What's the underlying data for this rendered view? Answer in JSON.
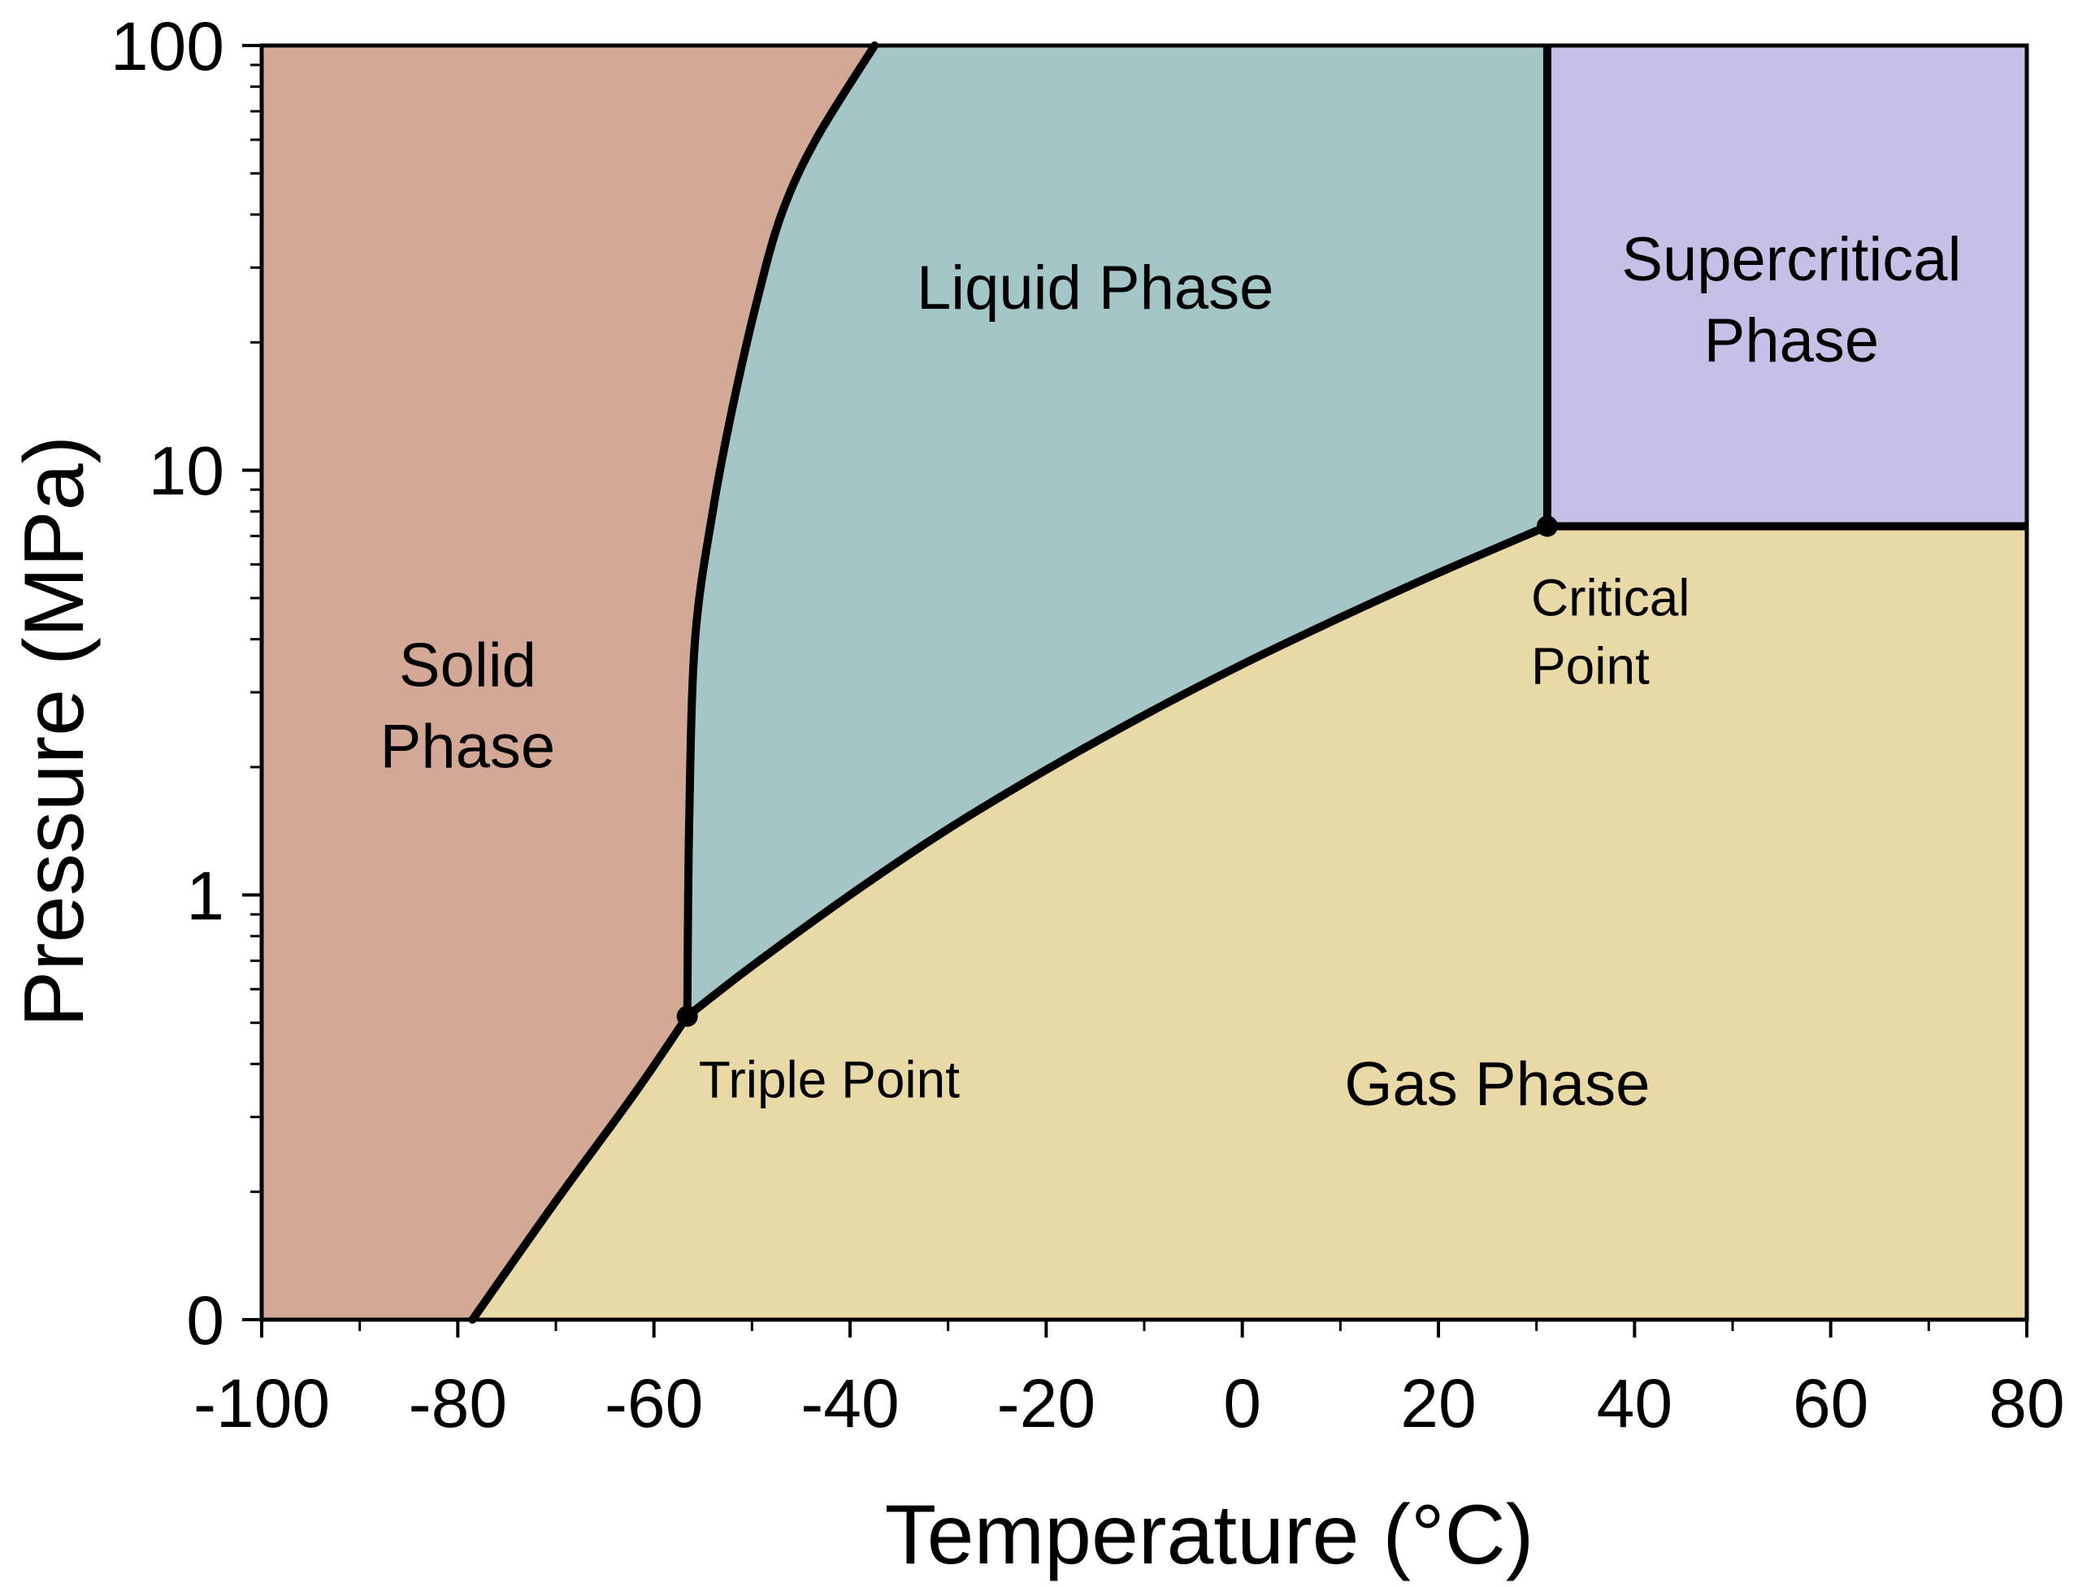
{
  "chart_data": {
    "type": "area",
    "xlabel": "Temperature (°C)",
    "ylabel": "Pressure (MPa)",
    "xlim": [
      -100,
      80
    ],
    "x_ticks": [
      -100,
      -80,
      -60,
      -40,
      -20,
      0,
      20,
      40,
      60,
      80
    ],
    "x_tick_labels": [
      "-100",
      "-80",
      "-60",
      "-40",
      "-20",
      "0",
      "20",
      "40",
      "60",
      "80"
    ],
    "y_scale": "log (bottom tick labeled 0 at 0.1 MPa)",
    "ylim": [
      0.1,
      100
    ],
    "y_ticks": [
      0.1,
      1,
      10,
      100
    ],
    "y_tick_labels": [
      "0",
      "1",
      "10",
      "100"
    ],
    "grid": false,
    "regions": [
      {
        "name": "Solid Phase",
        "lines": [
          "Solid",
          "Phase"
        ],
        "color": "#d4a896"
      },
      {
        "name": "Liquid Phase",
        "lines": [
          "Liquid Phase"
        ],
        "color": "#a4c6c6"
      },
      {
        "name": "Gas Phase",
        "lines": [
          "Gas Phase"
        ],
        "color": "#e9d9a6"
      },
      {
        "name": "Supercritical Phase",
        "lines": [
          "Supercritical",
          "Phase"
        ],
        "color": "#c6bfe6"
      }
    ],
    "boundaries": {
      "sublimation": {
        "x": [
          -78.5,
          -70,
          -62,
          -56.6
        ],
        "y": [
          0.1,
          0.19,
          0.34,
          0.518
        ]
      },
      "melting": {
        "x": [
          -56.6,
          -56.4,
          -55.8,
          -54,
          -52,
          -49.5,
          -47,
          -43.5,
          -37.5
        ],
        "y": [
          0.518,
          1.5,
          4,
          8,
          14,
          25,
          40,
          60,
          100
        ]
      },
      "vaporization": {
        "x": [
          -56.6,
          -50,
          -40,
          -30,
          -20,
          -10,
          0,
          10,
          20,
          31.1
        ],
        "y": [
          0.518,
          0.68,
          1.0,
          1.43,
          1.97,
          2.65,
          3.49,
          4.5,
          5.73,
          7.38
        ]
      },
      "critical_temperature": {
        "x": [
          31.1,
          31.1
        ],
        "y": [
          7.38,
          100
        ]
      },
      "critical_pressure": {
        "x": [
          31.1,
          80
        ],
        "y": [
          7.38,
          7.38
        ]
      }
    },
    "points": [
      {
        "name": "Triple Point",
        "lines": [
          "Triple Point"
        ],
        "x": -56.6,
        "y": 0.518
      },
      {
        "name": "Critical Point",
        "lines": [
          "Critical",
          "Point"
        ],
        "x": 31.1,
        "y": 7.38
      }
    ],
    "colors": {
      "line": "#000000",
      "background": "#ffffff"
    }
  }
}
